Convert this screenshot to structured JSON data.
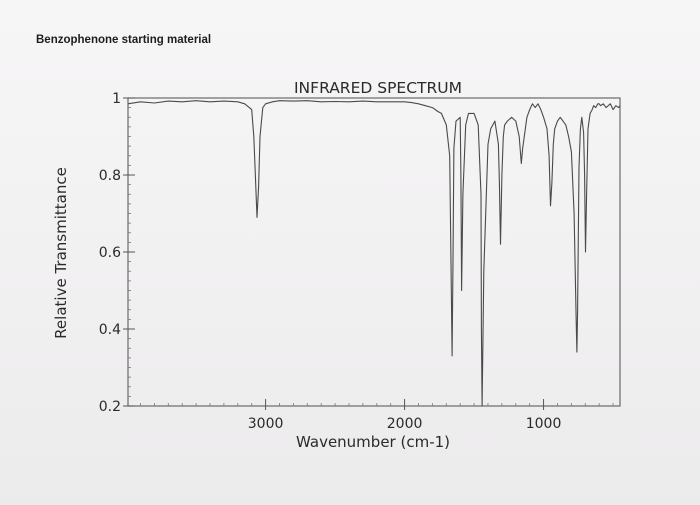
{
  "page": {
    "caption": "Benzophenone starting material"
  },
  "chart_data": {
    "type": "line",
    "title": "INFRARED SPECTRUM",
    "xlabel": "Wavenumber (cm-1)",
    "ylabel": "Relative Transmittance",
    "xlim": [
      3990,
      450
    ],
    "ylim": [
      0.2,
      1.0
    ],
    "x_ticks": [
      3000,
      2000,
      1000
    ],
    "x_tick_labels": [
      "3000",
      "2000",
      "1000"
    ],
    "y_ticks": [
      0.2,
      0.4,
      0.6,
      0.8,
      1.0
    ],
    "y_tick_labels": [
      "0.2",
      "0.4",
      "0.6",
      "0.8",
      "1"
    ],
    "grid": false,
    "series": [
      {
        "color": "#4a4a4a",
        "x": [
          3990,
          3900,
          3800,
          3700,
          3600,
          3500,
          3400,
          3300,
          3200,
          3150,
          3100,
          3085,
          3075,
          3062,
          3050,
          3040,
          3020,
          3000,
          2950,
          2900,
          2800,
          2700,
          2600,
          2500,
          2400,
          2300,
          2200,
          2100,
          2000,
          1950,
          1900,
          1850,
          1800,
          1760,
          1735,
          1700,
          1675,
          1665,
          1658,
          1652,
          1645,
          1630,
          1600,
          1595,
          1590,
          1580,
          1560,
          1540,
          1500,
          1470,
          1450,
          1447,
          1442,
          1430,
          1400,
          1380,
          1350,
          1325,
          1318,
          1310,
          1300,
          1290,
          1280,
          1260,
          1230,
          1200,
          1175,
          1160,
          1150,
          1120,
          1100,
          1080,
          1060,
          1040,
          1020,
          1000,
          975,
          960,
          950,
          940,
          930,
          920,
          900,
          880,
          860,
          840,
          820,
          800,
          780,
          765,
          760,
          755,
          745,
          735,
          725,
          712,
          705,
          698,
          690,
          680,
          665,
          650,
          640,
          625,
          610,
          600,
          590,
          570,
          550,
          520,
          500,
          480,
          460,
          450
        ],
        "y": [
          0.985,
          0.99,
          0.987,
          0.992,
          0.99,
          0.993,
          0.99,
          0.992,
          0.99,
          0.985,
          0.97,
          0.9,
          0.81,
          0.69,
          0.77,
          0.9,
          0.975,
          0.985,
          0.99,
          0.993,
          0.992,
          0.993,
          0.99,
          0.991,
          0.99,
          0.992,
          0.99,
          0.99,
          0.99,
          0.988,
          0.985,
          0.98,
          0.975,
          0.965,
          0.96,
          0.93,
          0.85,
          0.55,
          0.33,
          0.55,
          0.87,
          0.94,
          0.95,
          0.8,
          0.5,
          0.75,
          0.93,
          0.96,
          0.96,
          0.93,
          0.75,
          0.4,
          0.2,
          0.55,
          0.88,
          0.92,
          0.94,
          0.88,
          0.78,
          0.62,
          0.8,
          0.9,
          0.93,
          0.94,
          0.95,
          0.94,
          0.9,
          0.83,
          0.87,
          0.95,
          0.97,
          0.985,
          0.975,
          0.985,
          0.97,
          0.95,
          0.92,
          0.85,
          0.72,
          0.78,
          0.88,
          0.92,
          0.94,
          0.95,
          0.94,
          0.93,
          0.9,
          0.86,
          0.7,
          0.42,
          0.34,
          0.45,
          0.82,
          0.92,
          0.95,
          0.91,
          0.8,
          0.6,
          0.75,
          0.92,
          0.96,
          0.97,
          0.98,
          0.975,
          0.985,
          0.985,
          0.98,
          0.985,
          0.975,
          0.985,
          0.97,
          0.98,
          0.975,
          0.98
        ]
      }
    ]
  }
}
